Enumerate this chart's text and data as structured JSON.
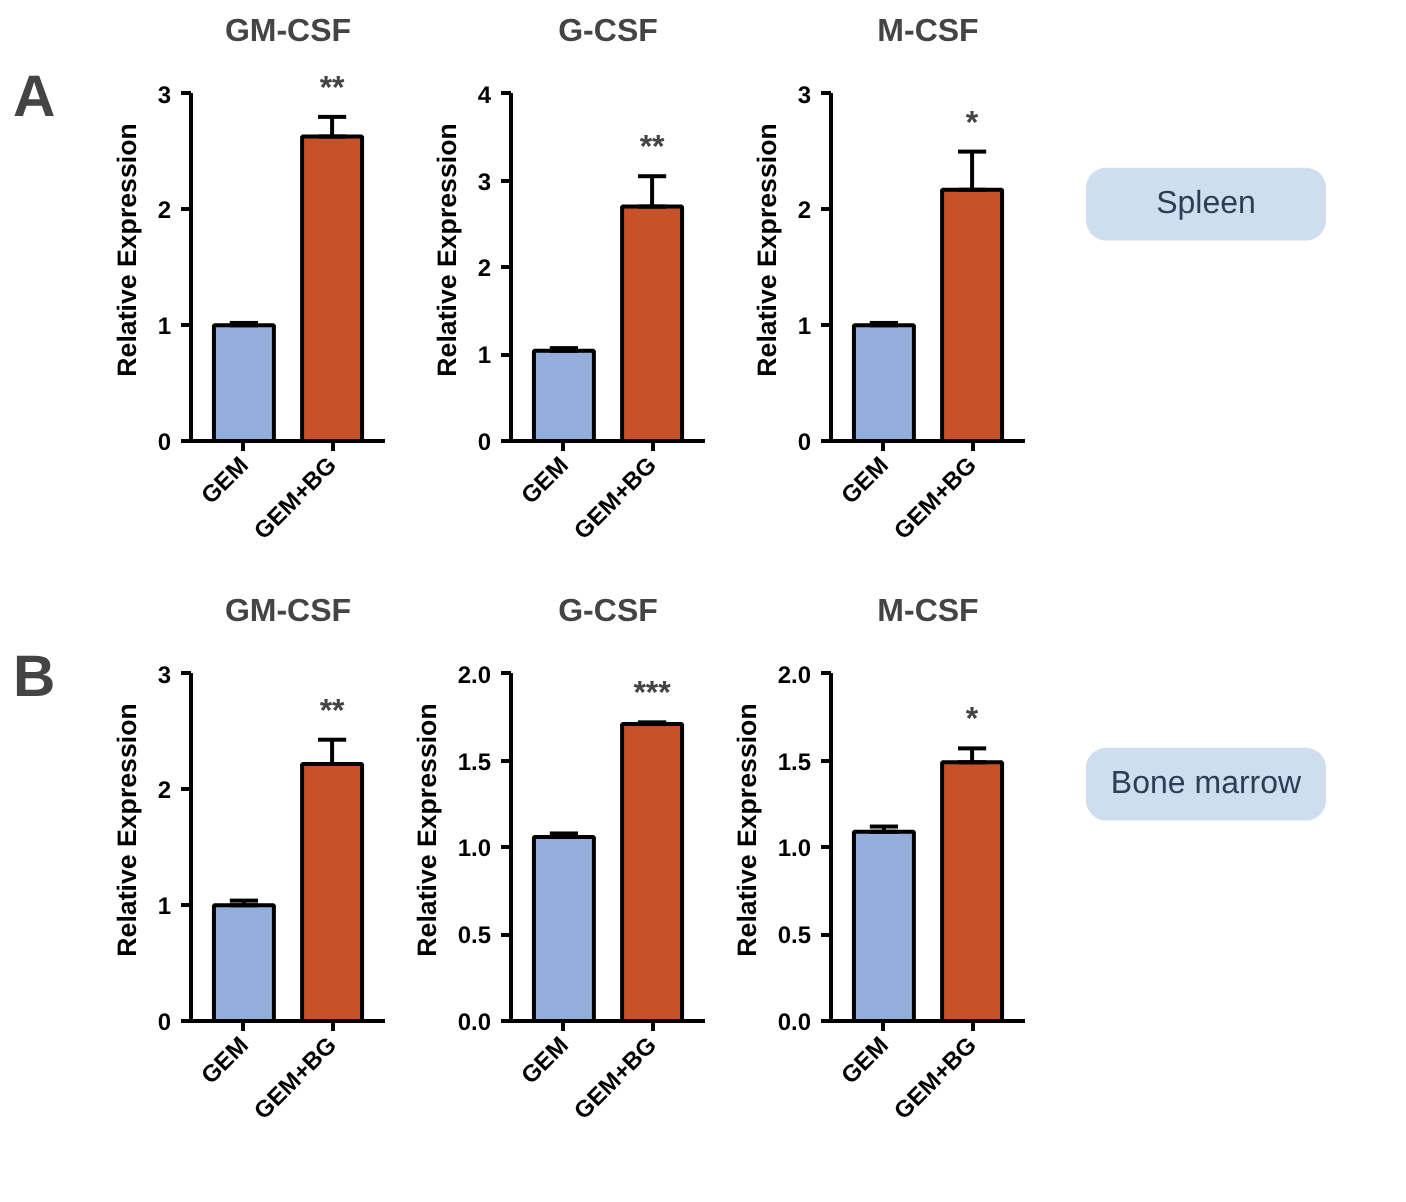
{
  "chart_data": [
    {
      "type": "bar",
      "title": "GM-CSF",
      "ylabel": "Relative Expression",
      "categories": [
        "GEM",
        "GEM+BG"
      ],
      "values": [
        1.0,
        2.63
      ],
      "colors": [
        "#94aedb",
        "#c75227"
      ],
      "errors": [
        [
          1.0,
          1.02
        ],
        [
          2.63,
          2.8
        ]
      ],
      "ylim": [
        0,
        3
      ],
      "yticks": [
        0,
        1,
        2,
        3
      ],
      "annotations": [
        "A",
        "**"
      ]
    },
    {
      "type": "bar",
      "title": "G-CSF",
      "ylabel": "Relative Expression",
      "categories": [
        "GEM",
        "GEM+BG"
      ],
      "values": [
        1.04,
        2.7
      ],
      "colors": [
        "#94aedb",
        "#c75227"
      ],
      "errors": [
        [
          1.04,
          1.07
        ],
        [
          2.7,
          3.05
        ]
      ],
      "ylim": [
        0,
        4
      ],
      "yticks": [
        0,
        1,
        2,
        3,
        4
      ],
      "annotations": [
        "**"
      ]
    },
    {
      "type": "bar",
      "title": "M-CSF",
      "ylabel": "Relative Expression",
      "categories": [
        "GEM",
        "GEM+BG"
      ],
      "values": [
        1.0,
        2.17
      ],
      "colors": [
        "#94aedb",
        "#c75227"
      ],
      "errors": [
        [
          1.0,
          1.02
        ],
        [
          2.17,
          2.5
        ]
      ],
      "ylim": [
        0,
        3
      ],
      "yticks": [
        0,
        1,
        2,
        3
      ],
      "annotations": [
        "*",
        "Spleen"
      ]
    },
    {
      "type": "bar",
      "title": "GM-CSF",
      "ylabel": "Relative Expression",
      "categories": [
        "GEM",
        "GEM+BG"
      ],
      "values": [
        1.0,
        2.22
      ],
      "colors": [
        "#94aedb",
        "#c75227"
      ],
      "errors": [
        [
          1.0,
          1.04
        ],
        [
          2.22,
          2.43
        ]
      ],
      "ylim": [
        0,
        3
      ],
      "yticks": [
        0,
        1,
        2,
        3
      ],
      "annotations": [
        "B",
        "**"
      ]
    },
    {
      "type": "bar",
      "title": "G-CSF",
      "ylabel": "Relative Expression",
      "categories": [
        "GEM",
        "GEM+BG"
      ],
      "values": [
        1.06,
        1.71
      ],
      "colors": [
        "#94aedb",
        "#c75227"
      ],
      "errors": [
        [
          1.06,
          1.08
        ],
        [
          1.71,
          1.72
        ]
      ],
      "ylim": [
        0,
        2
      ],
      "yticks": [
        {
          "value": 0,
          "label": "0.0"
        },
        {
          "value": 0.5,
          "label": "0.5"
        },
        {
          "value": 1,
          "label": "1.0"
        },
        {
          "value": 1.5,
          "label": "1.5"
        },
        {
          "value": 2,
          "label": "2.0"
        }
      ],
      "annotations": [
        "***"
      ]
    },
    {
      "type": "bar",
      "title": "M-CSF",
      "ylabel": "Relative Expression",
      "categories": [
        "GEM",
        "GEM+BG"
      ],
      "values": [
        1.09,
        1.49
      ],
      "colors": [
        "#94aedb",
        "#c75227"
      ],
      "errors": [
        [
          1.09,
          1.12
        ],
        [
          1.49,
          1.57
        ]
      ],
      "ylim": [
        0,
        2
      ],
      "yticks": [
        {
          "value": 0,
          "label": "0.0"
        },
        {
          "value": 0.5,
          "label": "0.5"
        },
        {
          "value": 1,
          "label": "1.0"
        },
        {
          "value": 1.5,
          "label": "1.5"
        },
        {
          "value": 2,
          "label": "2.0"
        }
      ],
      "annotations": [
        "*",
        "Bone marrow"
      ]
    }
  ]
}
